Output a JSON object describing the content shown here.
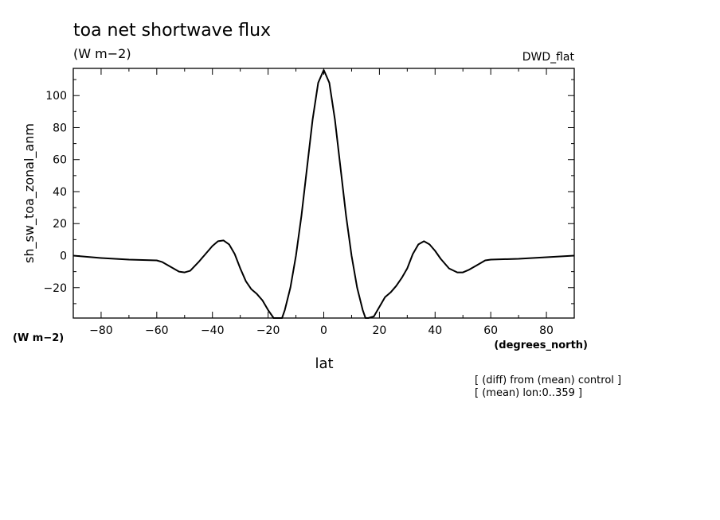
{
  "chart_data": {
    "type": "line",
    "title": "toa net shortwave flux",
    "title_units": "(W m−2)",
    "dataset": "DWD_flat",
    "ylabel": "sh_sw_toa_zonal_anm",
    "ylabel_units": "(W m−2)",
    "xlabel": "lat",
    "xlabel_units": "(degrees_north)",
    "xlim": [
      -90,
      90
    ],
    "ylim": [
      -39,
      117
    ],
    "xticks": [
      -80,
      -60,
      -40,
      -20,
      0,
      20,
      40,
      60,
      80
    ],
    "xtick_labels": [
      "−80",
      "−60",
      "−40",
      "−20",
      "0",
      "20",
      "40",
      "60",
      "80"
    ],
    "yticks": [
      -20,
      0,
      20,
      40,
      60,
      80,
      100
    ],
    "ytick_labels": [
      "−20",
      "0",
      "20",
      "40",
      "60",
      "80",
      "100"
    ],
    "notes": [
      "[ (diff) from (mean) control ]",
      "[ (mean) lon:0..359 ]"
    ],
    "grid": false,
    "series": [
      {
        "color": "#000000",
        "x": [
          -90,
          -80,
          -70,
          -60,
          -58,
          -55,
          -52,
          -50,
          -48,
          -45,
          -42,
          -40,
          -38,
          -36,
          -34,
          -32,
          -30,
          -28,
          -26,
          -24,
          -22,
          -20,
          -18,
          -16,
          -15,
          -14,
          -12,
          -10,
          -8,
          -6,
          -4,
          -2,
          0,
          2,
          4,
          6,
          8,
          10,
          12,
          14,
          15,
          16,
          18,
          20,
          22,
          24,
          26,
          28,
          30,
          32,
          34,
          36,
          38,
          40,
          42,
          45,
          48,
          50,
          52,
          55,
          58,
          60,
          70,
          80,
          90
        ],
        "y": [
          0,
          -1.5,
          -2.5,
          -3,
          -4,
          -7,
          -10,
          -10.5,
          -9.5,
          -4,
          2,
          6,
          9,
          9.5,
          7,
          1,
          -8,
          -16,
          -21,
          -24,
          -28,
          -34,
          -40,
          -40,
          -39,
          -34,
          -20,
          0,
          25,
          55,
          85,
          108,
          116,
          108,
          85,
          55,
          25,
          0,
          -20,
          -34,
          -39,
          -40,
          -38,
          -32,
          -26,
          -23,
          -19,
          -14,
          -8,
          1,
          7,
          9,
          7,
          3,
          -2,
          -8,
          -10.5,
          -10.5,
          -9,
          -6,
          -3,
          -2.5,
          -2,
          -1,
          0
        ]
      }
    ]
  }
}
